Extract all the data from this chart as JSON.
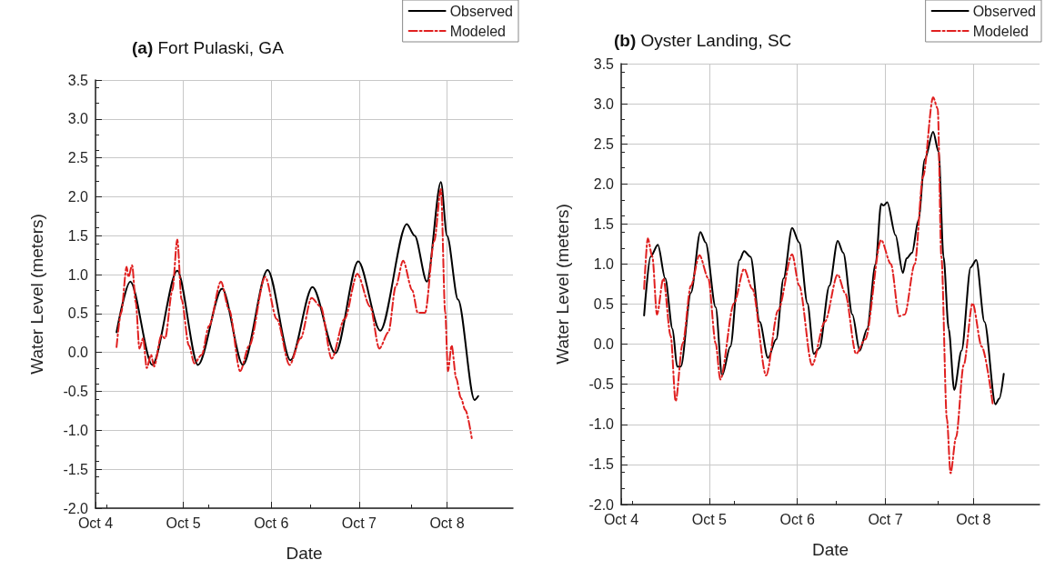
{
  "chart_data": [
    {
      "type": "line",
      "title": "(a) Fort Pulaski, GA",
      "xlabel": "Date",
      "ylabel": "Water Level (meters)",
      "xlim": [
        "--10-04T00:00",
        "--10-08T18:00"
      ],
      "xticks": [
        {
          "value": "--10-04",
          "label": "Oct 4"
        },
        {
          "value": "--10-05",
          "label": "Oct 5"
        },
        {
          "value": "--10-06",
          "label": "Oct 6"
        },
        {
          "value": "--10-07",
          "label": "Oct 7"
        },
        {
          "value": "--10-08",
          "label": "Oct 8"
        }
      ],
      "ylim": [
        -2,
        3.5
      ],
      "yticks": [
        {
          "value": -2,
          "label": "-2.0"
        },
        -1.5,
        {
          "value": -1,
          "label": "-1.0"
        },
        -0.5,
        {
          "value": 0,
          "label": "0.0"
        },
        0.5,
        {
          "value": 1,
          "label": "1.0"
        },
        1.5,
        {
          "value": 2,
          "label": "2.0"
        },
        2.5,
        {
          "value": 3,
          "label": "3.0"
        },
        3.5
      ],
      "grid": true,
      "legend": "top right",
      "marker": "none",
      "series": [
        {
          "name": "Observed",
          "color": "#000000",
          "line_style": "solid",
          "x": [
            "--10-04T05:45",
            "--10-04T09:30",
            "--10-04T15:30",
            "--10-04T22:20",
            "--10-05T04:00",
            "--10-05T10:35",
            "--10-05T16:15",
            "--10-05T23:00",
            "--10-06T05:15",
            "--10-06T11:15",
            "--10-06T17:30",
            "--10-06T23:45",
            "--10-07T05:45",
            "--10-07T13:00",
            "--10-07T15:10",
            "--10-07T18:30",
            "--10-07T22:20",
            "--10-08T00:00",
            "--10-08T03:00",
            "--10-08T07:30",
            "--10-08T08:30"
          ],
          "values": [
            0.26,
            0.91,
            -0.16,
            1.05,
            -0.16,
            0.82,
            -0.16,
            1.06,
            -0.1,
            0.84,
            -0.01,
            1.17,
            0.28,
            1.65,
            1.5,
            0.91,
            2.19,
            1.5,
            0.68,
            -0.61,
            -0.56
          ]
        },
        {
          "name": "Modeled",
          "color": "#e02020",
          "line_style": "dashdot",
          "x": [
            "--10-04T05:45",
            "--10-04T07:00",
            "--10-04T08:30",
            "--10-04T09:00",
            "--10-04T10:00",
            "--10-04T11:00",
            "--10-04T12:00",
            "--10-04T13:00",
            "--10-04T14:00",
            "--10-04T15:10",
            "--10-04T16:00",
            "--10-04T18:00",
            "--10-04T19:00",
            "--10-04T21:00",
            "--10-04T22:20",
            "--10-04T23:30",
            "--10-05T01:30",
            "--10-05T03:00",
            "--10-05T05:00",
            "--10-05T07:00",
            "--10-05T10:15",
            "--10-05T12:30",
            "--10-05T15:30",
            "--10-05T18:00",
            "--10-05T22:20",
            "--10-06T01:30",
            "--10-06T05:00",
            "--10-06T08:00",
            "--10-06T11:00",
            "--10-06T13:30",
            "--10-06T16:30",
            "--10-06T20:00",
            "--10-06T23:30",
            "--10-07T03:00",
            "--10-07T05:30",
            "--10-07T08:00",
            "--10-07T10:00",
            "--10-07T12:00",
            "--10-07T14:30",
            "--10-07T16:00",
            "--10-07T18:00",
            "--10-07T20:30",
            "--10-07T22:20",
            "--10-07T23:30",
            "--10-08T00:15",
            "--10-08T01:15",
            "--10-08T02:30",
            "--10-08T03:45",
            "--10-08T05:00",
            "--10-08T06:45"
          ],
          "values": [
            0.07,
            0.51,
            1.1,
            0.97,
            1.12,
            0.64,
            0.05,
            0.18,
            -0.2,
            -0.03,
            -0.18,
            0.22,
            0.18,
            0.8,
            1.45,
            0.68,
            0.09,
            -0.14,
            -0.03,
            0.34,
            0.91,
            0.55,
            -0.24,
            0.09,
            0.97,
            0.43,
            -0.16,
            0.18,
            0.7,
            0.59,
            -0.08,
            0.43,
            1.01,
            0.59,
            0.05,
            0.26,
            0.85,
            1.18,
            0.8,
            0.51,
            0.51,
            1.43,
            2.1,
            0.51,
            -0.24,
            0.09,
            -0.33,
            -0.58,
            -0.74,
            -1.1
          ]
        }
      ]
    },
    {
      "type": "line",
      "title": "(b) Oyster Landing, SC",
      "xlabel": "Date",
      "ylabel": "Water Level (meters)",
      "xlim": [
        "--10-04T00:00",
        "--10-08T18:00"
      ],
      "xticks": [
        {
          "value": "--10-04",
          "label": "Oct 4"
        },
        {
          "value": "--10-05",
          "label": "Oct 5"
        },
        {
          "value": "--10-06",
          "label": "Oct 6"
        },
        {
          "value": "--10-07",
          "label": "Oct 7"
        },
        {
          "value": "--10-08",
          "label": "Oct 8"
        }
      ],
      "ylim": [
        -2,
        3.5
      ],
      "yticks": [
        {
          "value": -2,
          "label": "-2.0"
        },
        -1.5,
        {
          "value": -1,
          "label": "-1.0"
        },
        -0.5,
        {
          "value": 0,
          "label": "0.0"
        },
        0.5,
        {
          "value": 1,
          "label": "1.0"
        },
        1.5,
        {
          "value": 2,
          "label": "2.0"
        },
        2.5,
        {
          "value": 3,
          "label": "3.0"
        },
        3.5
      ],
      "grid": true,
      "legend": "top right",
      "marker": "none",
      "series": [
        {
          "name": "Observed",
          "color": "#000000",
          "line_style": "solid",
          "x": [
            "--10-04T06:15",
            "--10-04T08:00",
            "--10-04T10:00",
            "--10-04T12:00",
            "--10-04T14:00",
            "--10-04T15:15",
            "--10-04T16:15",
            "--10-04T19:00",
            "--10-04T21:35",
            "--10-04T23:00",
            "--10-05T01:45",
            "--10-05T03:30",
            "--10-05T05:45",
            "--10-05T08:15",
            "--10-05T09:30",
            "--10-05T11:15",
            "--10-05T13:45",
            "--10-05T16:00",
            "--10-05T18:15",
            "--10-05T20:15",
            "--10-05T22:35",
            "--10-06T00:30",
            "--10-06T02:45",
            "--10-06T04:30",
            "--10-06T06:00",
            "--10-06T08:45",
            "--10-06T11:00",
            "--10-06T12:30",
            "--10-06T15:00",
            "--10-06T17:00",
            "--10-06T19:00",
            "--10-06T21:20",
            "--10-06T22:50",
            "--10-06T23:30",
            "--10-07T00:30",
            "--10-07T02:45",
            "--10-07T04:45",
            "--10-07T05:45",
            "--10-07T07:15",
            "--10-07T09:00",
            "--10-07T10:45",
            "--10-07T13:00",
            "--10-07T14:30",
            "--10-07T15:50",
            "--10-07T17:15",
            "--10-07T18:45",
            "--10-07T20:45",
            "--10-07T23:15",
            "--10-08T00:45",
            "--10-08T03:00",
            "--10-08T06:00",
            "--10-08T07:00",
            "--10-08T08:15"
          ],
          "values": [
            0.36,
            1.09,
            1.24,
            0.82,
            0.19,
            -0.28,
            -0.28,
            0.64,
            1.4,
            1.27,
            0.46,
            -0.39,
            -0.03,
            1.05,
            1.16,
            1.09,
            0.28,
            -0.17,
            0.06,
            0.82,
            1.45,
            1.27,
            0.51,
            -0.12,
            -0.05,
            0.73,
            1.29,
            1.14,
            0.37,
            -0.08,
            0.19,
            1.0,
            1.75,
            1.73,
            1.77,
            1.36,
            0.89,
            1.07,
            1.14,
            1.55,
            2.31,
            2.65,
            2.4,
            1.09,
            0.19,
            -0.57,
            -0.08,
            0.96,
            1.05,
            0.28,
            -0.75,
            -0.68,
            -0.37
          ]
        },
        {
          "name": "Modeled",
          "color": "#e02020",
          "line_style": "dashdot",
          "x": [
            "--10-04T06:15",
            "--10-04T07:15",
            "--10-04T08:30",
            "--10-04T09:45",
            "--10-04T11:30",
            "--10-04T13:30",
            "--10-04T14:50",
            "--10-04T16:45",
            "--10-04T19:00",
            "--10-04T21:20",
            "--10-04T23:45",
            "--10-05T01:45",
            "--10-05T03:00",
            "--10-05T06:45",
            "--10-05T09:30",
            "--10-05T11:45",
            "--10-05T15:30",
            "--10-05T18:45",
            "--10-05T22:35",
            "--10-06T00:30",
            "--10-06T04:00",
            "--10-06T07:30",
            "--10-06T11:00",
            "--10-06T13:00",
            "--10-06T16:00",
            "--10-06T18:30",
            "--10-06T22:50",
            "--10-07T01:30",
            "--10-07T03:45",
            "--10-07T05:15",
            "--10-07T08:00",
            "--10-07T10:15",
            "--10-07T13:00",
            "--10-07T14:15",
            "--10-07T15:15",
            "--10-07T16:45",
            "--10-07T17:45",
            "--10-07T19:15",
            "--10-07T21:20",
            "--10-07T23:45",
            "--10-08T02:15",
            "--10-08T05:15"
          ],
          "values": [
            0.69,
            1.32,
            1.09,
            0.37,
            0.82,
            0.1,
            -0.71,
            0.01,
            0.73,
            1.11,
            0.82,
            0.01,
            -0.44,
            0.51,
            0.94,
            0.69,
            -0.39,
            0.42,
            1.12,
            0.73,
            -0.26,
            0.28,
            0.87,
            0.64,
            -0.12,
            0.06,
            1.3,
            1.0,
            0.35,
            0.37,
            1.0,
            2.09,
            3.08,
            2.94,
            1.09,
            -0.93,
            -1.61,
            -1.16,
            -0.26,
            0.51,
            -0.03,
            -0.75
          ]
        }
      ]
    }
  ]
}
